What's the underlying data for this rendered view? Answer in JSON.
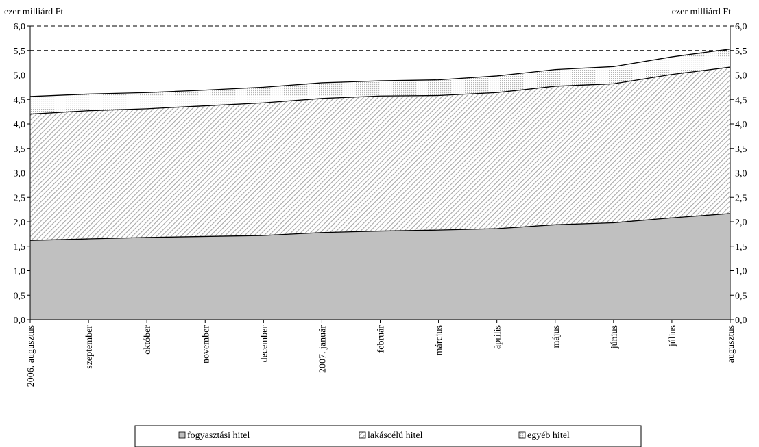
{
  "chart_data": {
    "type": "area",
    "stacked": true,
    "left_unit_label": "ezer milliárd Ft",
    "right_unit_label": "ezer milliárd Ft",
    "categories": [
      "2006. augusztus",
      "szeptember",
      "október",
      "november",
      "december",
      "2007. január",
      "február",
      "március",
      "április",
      "május",
      "június",
      "július",
      "augusztus"
    ],
    "series": [
      {
        "name": "fogyasztási hitel",
        "values": [
          1.62,
          1.65,
          1.68,
          1.7,
          1.72,
          1.78,
          1.81,
          1.83,
          1.86,
          1.94,
          1.98,
          2.08,
          2.17
        ]
      },
      {
        "name": "lakáscélú hitel",
        "values": [
          2.58,
          2.62,
          2.63,
          2.67,
          2.71,
          2.74,
          2.76,
          2.75,
          2.78,
          2.83,
          2.84,
          2.93,
          2.99
        ]
      },
      {
        "name": "egyéb hitel",
        "values": [
          0.36,
          0.34,
          0.33,
          0.32,
          0.32,
          0.32,
          0.31,
          0.32,
          0.34,
          0.34,
          0.35,
          0.36,
          0.37
        ]
      }
    ],
    "ylim": [
      0,
      6
    ],
    "ytick_step": 0.5,
    "ytick_labels": [
      "0,0",
      "0,5",
      "1,0",
      "1,5",
      "2,0",
      "2,5",
      "3,0",
      "3,5",
      "4,0",
      "4,5",
      "5,0",
      "5,5",
      "6,0"
    ],
    "gridlines_dashed_at": [
      5.0,
      5.5,
      6.0
    ],
    "legend_position": "bottom",
    "colors": {
      "fogyasztasi": "#c0c0c0",
      "lakascelu_hatch": "#a6a6a6",
      "egyeb_dots": "#b5b5b5",
      "line": "#000000"
    }
  }
}
